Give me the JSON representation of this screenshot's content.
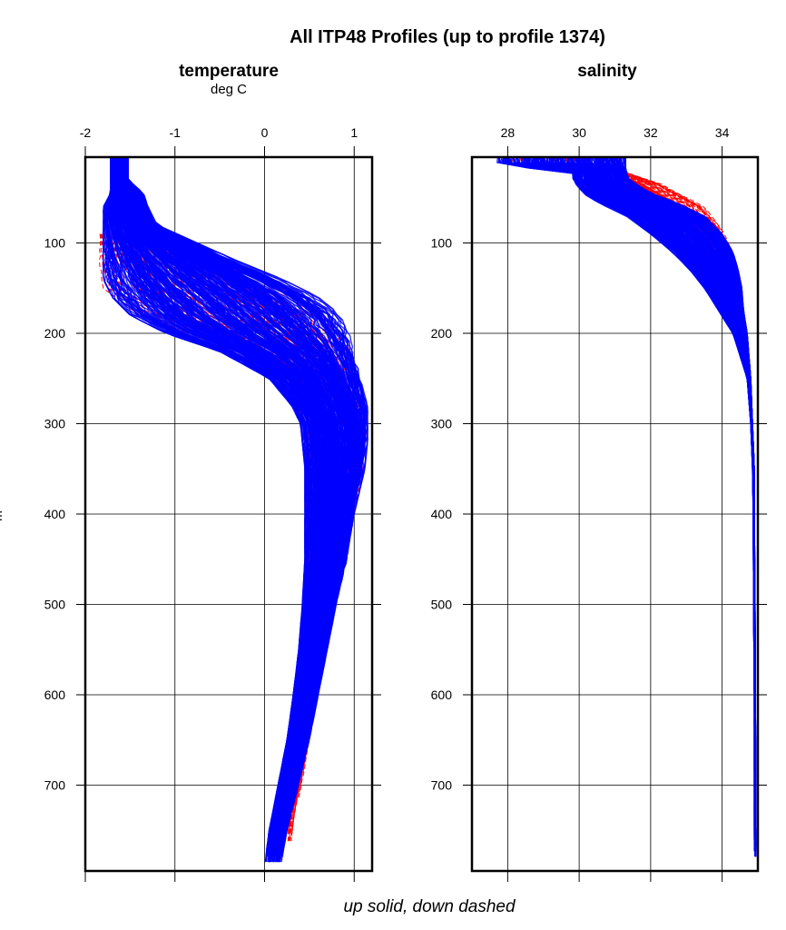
{
  "figure": {
    "title": "All ITP48 Profiles (up to profile 1374)",
    "caption": "up solid, down dashed",
    "y_axis_label_fragment": "m"
  },
  "colors": {
    "up_profiles": "#0000ff",
    "down_profiles": "#ff0000",
    "frame": "#000000",
    "grid": "#000000",
    "background": "#ffffff"
  },
  "chart_data": [
    {
      "type": "line",
      "title": "temperature",
      "xlabel": "deg C",
      "ylabel": "",
      "x_axis_position": "top",
      "xlim": [
        -2.0,
        1.2
      ],
      "ylim": [
        795,
        5
      ],
      "y_inverted": true,
      "xticks": [
        -2,
        -1,
        0,
        1
      ],
      "xtick_labels": [
        "-2",
        "-1",
        "0",
        "1"
      ],
      "yticks": [
        100,
        200,
        300,
        400,
        500,
        600,
        700
      ],
      "ytick_labels": [
        "100",
        "200",
        "300",
        "400",
        "500",
        "600",
        "700"
      ],
      "grid": true,
      "series": [
        {
          "style": "solid",
          "envelope": {
            "depth": [
              5,
              30,
              45,
              60,
              80,
              100,
              120,
              140,
              160,
              180,
              200,
              220,
              250,
              280,
              300,
              320,
              350,
              400,
              450,
              500,
              550,
              600,
              650,
              700,
              750,
              790
            ],
            "min": [
              -1.72,
              -1.72,
              -1.72,
              -1.8,
              -1.8,
              -1.8,
              -1.8,
              -1.8,
              -1.7,
              -1.5,
              -1.1,
              -0.5,
              0.05,
              0.3,
              0.4,
              0.42,
              0.45,
              0.45,
              0.45,
              0.42,
              0.38,
              0.32,
              0.25,
              0.15,
              0.05,
              0.0
            ],
            "max": [
              -1.52,
              -1.52,
              -1.35,
              -1.3,
              -1.2,
              -0.75,
              -0.3,
              0.2,
              0.6,
              0.85,
              0.95,
              1.0,
              1.07,
              1.15,
              1.15,
              1.15,
              1.12,
              1.0,
              0.92,
              0.8,
              0.7,
              0.6,
              0.5,
              0.38,
              0.25,
              0.18
            ]
          }
        },
        {
          "style": "dashed",
          "envelope": {
            "depth": [
              90,
              120,
              150,
              180,
              210,
              240,
              270,
              300,
              350,
              400,
              450,
              500,
              560,
              620,
              680,
              730,
              765
            ],
            "min": [
              -1.85,
              -1.85,
              -1.8,
              -1.4,
              -0.6,
              0.0,
              0.3,
              0.4,
              0.45,
              0.45,
              0.45,
              0.45,
              0.4,
              0.32,
              0.26,
              0.2,
              0.2
            ],
            "max": [
              -1.25,
              -0.5,
              0.2,
              0.7,
              0.95,
              1.0,
              1.1,
              1.15,
              1.1,
              1.0,
              0.9,
              0.8,
              0.65,
              0.55,
              0.45,
              0.35,
              0.3
            ]
          }
        }
      ]
    },
    {
      "type": "line",
      "title": "salinity",
      "xlabel": "",
      "ylabel": "",
      "x_axis_position": "top",
      "xlim": [
        27.0,
        35.0
      ],
      "ylim": [
        795,
        5
      ],
      "y_inverted": true,
      "xticks": [
        28,
        30,
        32,
        34
      ],
      "xtick_labels": [
        "28",
        "30",
        "32",
        "34"
      ],
      "yticks": [
        100,
        200,
        300,
        400,
        500,
        600,
        700
      ],
      "ytick_labels": [
        "100",
        "200",
        "300",
        "400",
        "500",
        "600",
        "700"
      ],
      "grid": true,
      "series": [
        {
          "style": "solid",
          "envelope": {
            "depth": [
              5,
              15,
              20,
              30,
              45,
              55,
              70,
              90,
              110,
              130,
              150,
              175,
              200,
              250,
              300,
              350,
              400,
              500,
              600,
              700,
              780
            ],
            "min": [
              27.7,
              27.7,
              29.8,
              29.8,
              30.1,
              30.5,
              31.3,
              32.0,
              32.6,
              33.1,
              33.5,
              33.9,
              34.3,
              34.7,
              34.8,
              34.85,
              34.87,
              34.88,
              34.9,
              34.9,
              34.9
            ],
            "max": [
              31.3,
              31.3,
              31.3,
              31.4,
              32.0,
              32.7,
              33.5,
              34.0,
              34.3,
              34.45,
              34.55,
              34.6,
              34.7,
              34.8,
              34.85,
              34.9,
              34.9,
              34.92,
              34.93,
              34.94,
              34.95
            ]
          }
        },
        {
          "style": "dashed",
          "envelope": {
            "depth": [
              5,
              15,
              20,
              35,
              60,
              85,
              110,
              150
            ],
            "min": [
              28.0,
              28.0,
              30.0,
              30.6,
              31.4,
              32.2,
              33.0,
              33.8
            ],
            "max": [
              31.2,
              31.2,
              31.2,
              32.3,
              33.5,
              34.0,
              34.3,
              34.5
            ]
          }
        }
      ]
    }
  ]
}
